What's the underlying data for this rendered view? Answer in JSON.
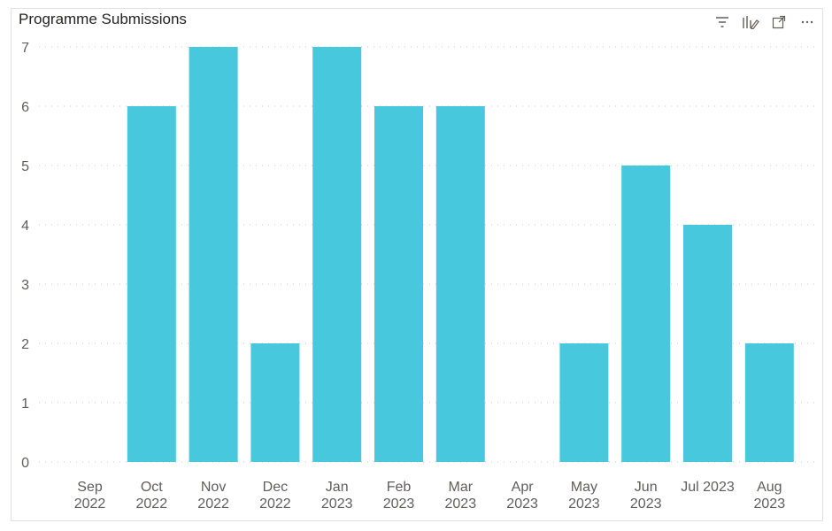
{
  "visual": {
    "title": "Programme Submissions",
    "toolbar": [
      {
        "name": "filter-icon"
      },
      {
        "name": "focus-visual-icon"
      },
      {
        "name": "expand-icon"
      },
      {
        "name": "more-options-icon"
      }
    ]
  },
  "chart_data": {
    "type": "bar",
    "title": "Programme Submissions",
    "xlabel": "",
    "ylabel": "",
    "categories": [
      [
        "Sep",
        "2022"
      ],
      [
        "Oct",
        "2022"
      ],
      [
        "Nov",
        "2022"
      ],
      [
        "Dec",
        "2022"
      ],
      [
        "Jan",
        "2023"
      ],
      [
        "Feb",
        "2023"
      ],
      [
        "Mar",
        "2023"
      ],
      [
        "Apr",
        "2023"
      ],
      [
        "May",
        "2023"
      ],
      [
        "Jun",
        "2023"
      ],
      [
        "Jul 2023",
        ""
      ],
      [
        "Aug",
        "2023"
      ]
    ],
    "values": [
      0,
      6,
      7,
      2,
      7,
      6,
      6,
      0,
      2,
      5,
      4,
      2
    ],
    "ylim": [
      0,
      7
    ],
    "yticks": [
      0,
      1,
      2,
      3,
      4,
      5,
      6,
      7
    ],
    "grid": true,
    "bar_color": "#48c8dd"
  }
}
